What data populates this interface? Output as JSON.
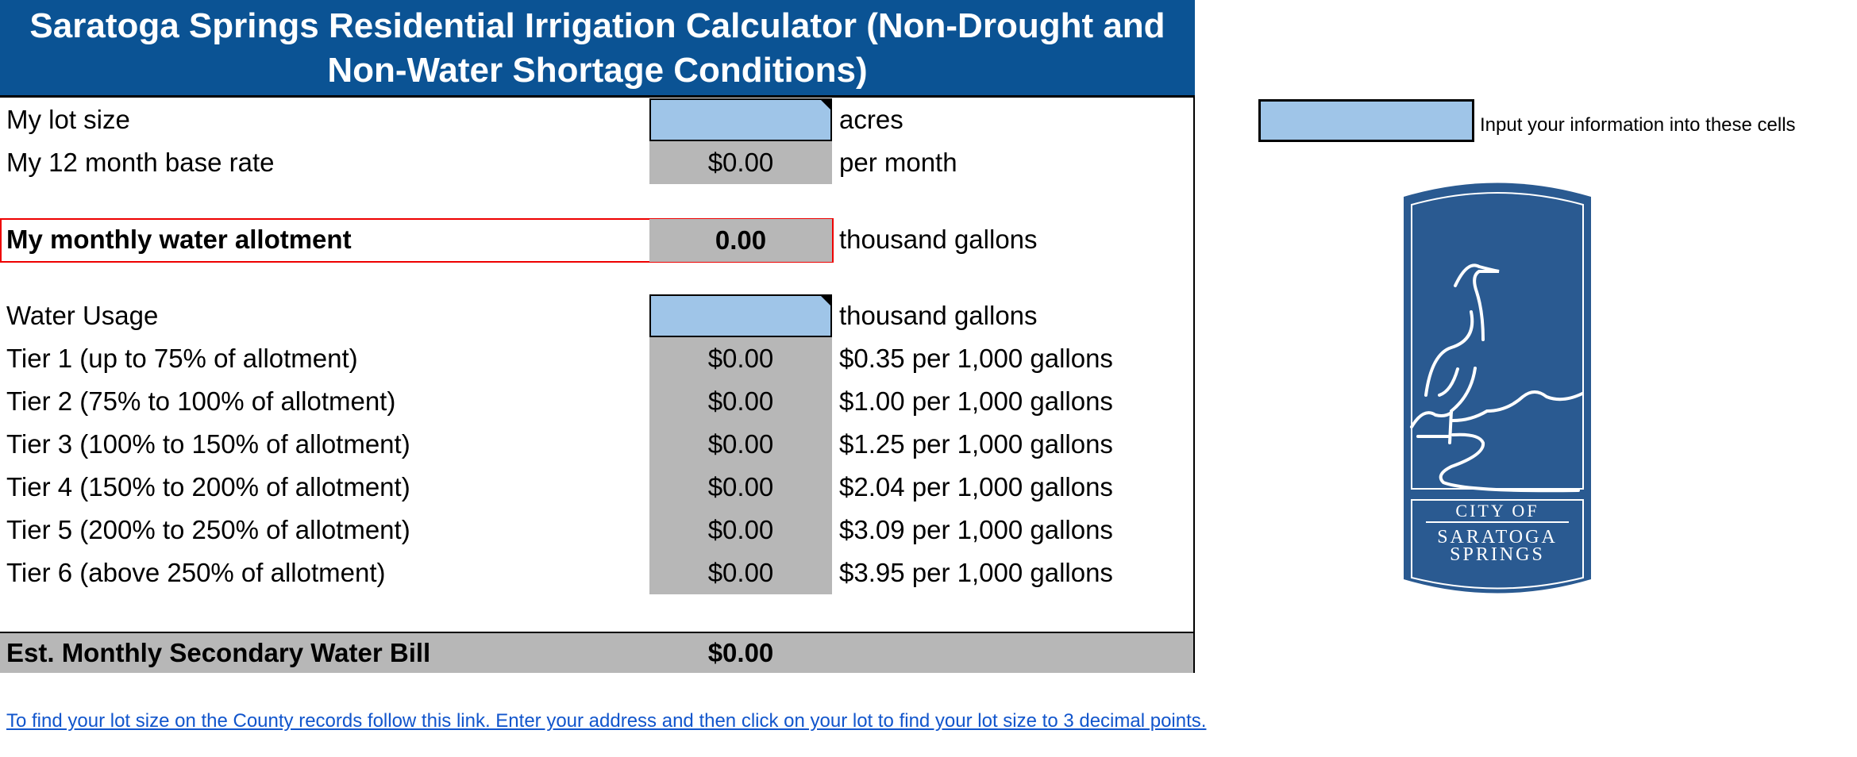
{
  "title": "Saratoga Springs Residential Irrigation Calculator (Non-Drought and Non-Water Shortage Conditions)",
  "rows": {
    "lot_size": {
      "label": "My lot size",
      "value": "",
      "unit": "acres"
    },
    "base_rate": {
      "label": "My 12 month base rate",
      "value": "$0.00",
      "unit": "per month"
    },
    "allotment": {
      "label": "My monthly water allotment",
      "value": "0.00",
      "unit": "thousand gallons"
    },
    "water_usage": {
      "label": "Water Usage",
      "value": "",
      "unit": "thousand gallons"
    }
  },
  "tiers": [
    {
      "label": "Tier 1 (up to 75% of allotment)",
      "value": "$0.00",
      "rate": "$0.35 per 1,000 gallons"
    },
    {
      "label": "Tier 2 (75% to 100% of allotment)",
      "value": "$0.00",
      "rate": "$1.00 per 1,000 gallons"
    },
    {
      "label": "Tier 3 (100% to 150% of allotment)",
      "value": "$0.00",
      "rate": "$1.25 per 1,000 gallons"
    },
    {
      "label": "Tier 4 (150% to 200% of allotment)",
      "value": "$0.00",
      "rate": "$2.04 per 1,000 gallons"
    },
    {
      "label": "Tier 5 (200% to 250% of allotment)",
      "value": "$0.00",
      "rate": "$3.09 per 1,000 gallons"
    },
    {
      "label": "Tier 6 (above 250% of allotment)",
      "value": "$0.00",
      "rate": "$3.95 per 1,000 gallons"
    }
  ],
  "bill": {
    "label": "Est. Monthly Secondary Water Bill",
    "value": "$0.00"
  },
  "link": "To find your lot size on the County records follow this link. Enter your address and then click on your lot to find your lot size to 3 decimal points.",
  "legend": "Input your information into these cells",
  "logo": {
    "line1": "CITY OF",
    "line2": "SARATOGA",
    "line3": "SPRINGS"
  },
  "colors": {
    "header": "#0b5394",
    "input": "#9fc5e8",
    "calculated": "#b7b7b7",
    "logo": "#2a5a91"
  }
}
